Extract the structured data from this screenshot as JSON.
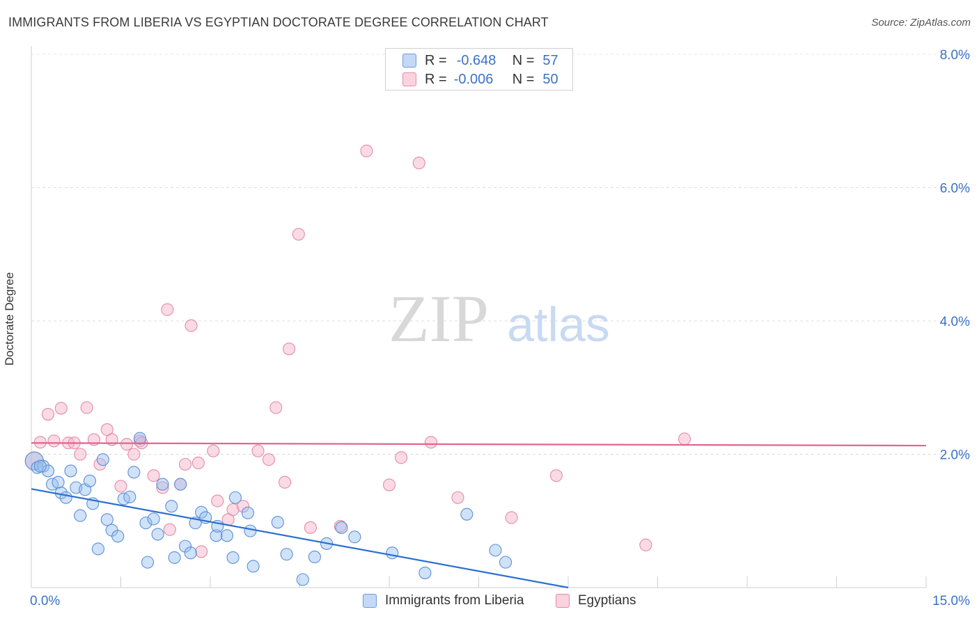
{
  "header": {
    "title": "IMMIGRANTS FROM LIBERIA VS EGYPTIAN DOCTORATE DEGREE CORRELATION CHART",
    "source": "Source: ZipAtlas.com"
  },
  "watermark": {
    "zip": "ZIP",
    "atlas": "atlas"
  },
  "legend": {
    "rows": [
      {
        "r_label": "R =",
        "r_value": "-0.648",
        "n_label": "N =",
        "n_value": "57",
        "color": "#9ec1ee",
        "border": "#5b8fd6"
      },
      {
        "r_label": "R =",
        "r_value": "-0.006",
        "n_label": "N =",
        "n_value": "50",
        "color": "#f5b8cb",
        "border": "#e07a9c"
      }
    ]
  },
  "bottom_legend": [
    {
      "label": "Immigrants from Liberia",
      "color": "#c4d9f5",
      "border": "#6a9ae0"
    },
    {
      "label": "Egyptians",
      "color": "#fbd3de",
      "border": "#e48aa8"
    }
  ],
  "chart_data": {
    "type": "scatter",
    "title": "IMMIGRANTS FROM LIBERIA VS EGYPTIAN DOCTORATE DEGREE CORRELATION CHART",
    "xlabel": "",
    "ylabel": "Doctorate Degree",
    "xlim": [
      0,
      15
    ],
    "ylim": [
      0,
      8
    ],
    "x_tick_labels": [
      "0.0%",
      "15.0%"
    ],
    "y_ticks": [
      2,
      4,
      6,
      8
    ],
    "y_tick_labels": [
      "2.0%",
      "4.0%",
      "6.0%",
      "8.0%"
    ],
    "colors": {
      "liberia": "#5b8fd6",
      "liberia_line": "#2b6fd0",
      "egypt": "#e07a9c",
      "egypt_line": "#e0668f",
      "tick_text": "#3a72c9"
    },
    "series": [
      {
        "name": "Immigrants from Liberia",
        "trend": {
          "x": [
            0,
            9.0
          ],
          "y": [
            1.48,
            0.0
          ]
        },
        "points": [
          [
            0.05,
            1.9
          ],
          [
            0.1,
            1.8
          ],
          [
            0.2,
            1.82
          ],
          [
            0.28,
            1.75
          ],
          [
            0.35,
            1.55
          ],
          [
            0.45,
            1.58
          ],
          [
            0.5,
            1.42
          ],
          [
            0.58,
            1.35
          ],
          [
            0.66,
            1.75
          ],
          [
            0.75,
            1.5
          ],
          [
            0.82,
            1.08
          ],
          [
            0.9,
            1.47
          ],
          [
            0.98,
            1.6
          ],
          [
            1.03,
            1.26
          ],
          [
            1.12,
            0.58
          ],
          [
            1.2,
            1.92
          ],
          [
            1.27,
            1.02
          ],
          [
            1.35,
            0.86
          ],
          [
            1.45,
            0.77
          ],
          [
            1.55,
            1.33
          ],
          [
            1.65,
            1.36
          ],
          [
            1.72,
            1.73
          ],
          [
            1.82,
            2.24
          ],
          [
            1.92,
            0.97
          ],
          [
            1.95,
            0.38
          ],
          [
            2.05,
            1.03
          ],
          [
            2.12,
            0.8
          ],
          [
            2.2,
            1.55
          ],
          [
            2.35,
            1.22
          ],
          [
            2.4,
            0.45
          ],
          [
            2.5,
            1.55
          ],
          [
            2.58,
            0.62
          ],
          [
            2.67,
            0.52
          ],
          [
            2.75,
            0.97
          ],
          [
            2.85,
            1.13
          ],
          [
            2.92,
            1.05
          ],
          [
            3.1,
            0.78
          ],
          [
            3.12,
            0.92
          ],
          [
            3.28,
            0.78
          ],
          [
            3.38,
            0.45
          ],
          [
            3.42,
            1.35
          ],
          [
            3.72,
            0.32
          ],
          [
            3.67,
            0.85
          ],
          [
            3.63,
            1.12
          ],
          [
            4.13,
            0.98
          ],
          [
            4.28,
            0.5
          ],
          [
            4.55,
            0.12
          ],
          [
            4.75,
            0.46
          ],
          [
            4.95,
            0.66
          ],
          [
            5.2,
            0.9
          ],
          [
            5.42,
            0.76
          ],
          [
            6.05,
            0.52
          ],
          [
            6.6,
            0.22
          ],
          [
            7.3,
            1.1
          ],
          [
            7.78,
            0.56
          ],
          [
            7.95,
            0.38
          ],
          [
            0.15,
            1.82
          ]
        ]
      },
      {
        "name": "Egyptians",
        "trend": {
          "x": [
            0,
            15
          ],
          "y": [
            2.17,
            2.13
          ]
        },
        "points": [
          [
            0.05,
            1.9
          ],
          [
            0.15,
            2.18
          ],
          [
            0.28,
            2.6
          ],
          [
            0.38,
            2.2
          ],
          [
            0.5,
            2.69
          ],
          [
            0.62,
            2.17
          ],
          [
            0.72,
            2.17
          ],
          [
            0.82,
            2.0
          ],
          [
            0.93,
            2.7
          ],
          [
            1.05,
            2.22
          ],
          [
            1.15,
            1.85
          ],
          [
            1.27,
            2.37
          ],
          [
            1.35,
            2.22
          ],
          [
            1.5,
            1.52
          ],
          [
            1.6,
            2.15
          ],
          [
            1.72,
            2.0
          ],
          [
            1.82,
            2.2
          ],
          [
            1.85,
            2.17
          ],
          [
            2.05,
            1.68
          ],
          [
            2.2,
            1.5
          ],
          [
            2.28,
            4.17
          ],
          [
            2.32,
            0.87
          ],
          [
            2.5,
            1.55
          ],
          [
            2.58,
            1.85
          ],
          [
            2.68,
            3.93
          ],
          [
            2.8,
            1.87
          ],
          [
            2.85,
            0.54
          ],
          [
            3.05,
            2.05
          ],
          [
            3.12,
            1.3
          ],
          [
            3.3,
            1.02
          ],
          [
            3.38,
            1.17
          ],
          [
            3.55,
            1.22
          ],
          [
            3.8,
            2.05
          ],
          [
            3.98,
            1.92
          ],
          [
            4.1,
            2.7
          ],
          [
            4.25,
            1.58
          ],
          [
            4.32,
            3.58
          ],
          [
            4.48,
            5.3
          ],
          [
            4.68,
            0.9
          ],
          [
            5.18,
            0.92
          ],
          [
            5.62,
            6.55
          ],
          [
            6.0,
            1.54
          ],
          [
            6.2,
            1.95
          ],
          [
            6.5,
            6.37
          ],
          [
            6.7,
            2.18
          ],
          [
            7.15,
            1.35
          ],
          [
            8.05,
            1.05
          ],
          [
            8.8,
            1.68
          ],
          [
            10.3,
            0.64
          ],
          [
            10.95,
            2.23
          ]
        ]
      }
    ]
  }
}
